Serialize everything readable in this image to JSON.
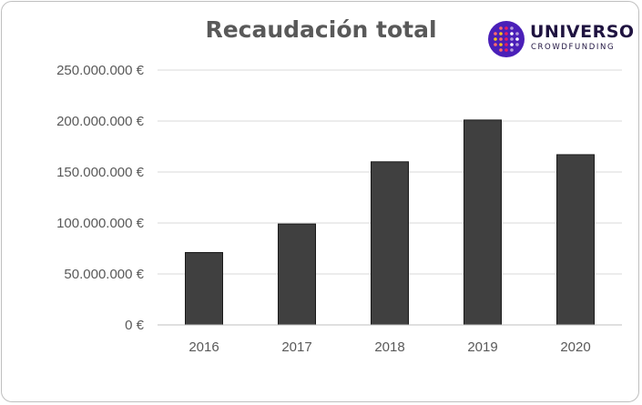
{
  "logo": {
    "name": "UNIVERSO",
    "subtitle": "CROWDFUNDING",
    "colors": [
      "#f5c518",
      "#ff6b6b",
      "#e91e63",
      "#ffffff",
      "#b39ddb"
    ]
  },
  "colors": {
    "bar": "#404040",
    "bar_stroke": "#1a1a1a",
    "grid": "#d9d9d9",
    "axis": "#bfbfbf",
    "text": "#595959"
  },
  "chart_data": {
    "type": "bar",
    "title": "Recaudación total",
    "xlabel": "",
    "ylabel": "",
    "categories": [
      "2016",
      "2017",
      "2018",
      "2019",
      "2020"
    ],
    "values": [
      71000000,
      99000000,
      160000000,
      201000000,
      167000000
    ],
    "ylim": [
      0,
      250000000
    ],
    "yticks": [
      0,
      50000000,
      100000000,
      150000000,
      200000000,
      250000000
    ],
    "ytick_labels": [
      "0 €",
      "50.000.000 €",
      "100.000.000 €",
      "150.000.000 €",
      "200.000.000 €",
      "250.000.000 €"
    ],
    "grid": true,
    "legend": "none"
  }
}
